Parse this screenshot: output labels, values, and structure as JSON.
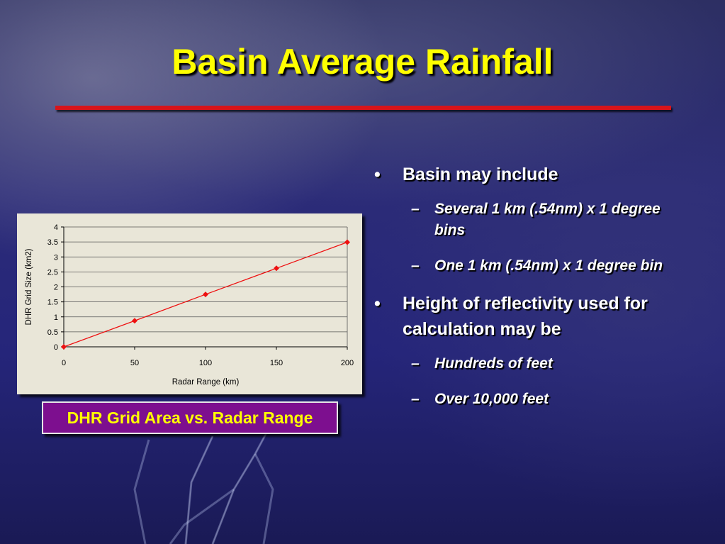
{
  "slide": {
    "title": "Basin Average Rainfall",
    "caption": "DHR Grid Area vs. Radar Range",
    "colors": {
      "title": "#ffff00",
      "rule": "#d8141a",
      "caption_bg": "#7d0f8f",
      "caption_text": "#ffff00",
      "series": "#ee1111"
    }
  },
  "bullets": [
    {
      "mark": "•",
      "text": "Basin may include",
      "subs": [
        {
          "mark": "–",
          "text": "Several 1 km (.54nm) x 1 degree bins"
        },
        {
          "mark": "–",
          "text": "One 1 km (.54nm) x 1 degree bin"
        }
      ]
    },
    {
      "mark": "•",
      "text": "Height of reflectivity used for calculation may be",
      "subs": [
        {
          "mark": "–",
          "text": "Hundreds of feet"
        },
        {
          "mark": "–",
          "text": "Over 10,000 feet"
        }
      ]
    }
  ],
  "chart_data": {
    "type": "line",
    "title": "",
    "xlabel": "Radar Range (km)",
    "ylabel": "DHR Grid Size (km2)",
    "xlim": [
      0,
      200
    ],
    "ylim": [
      0,
      4
    ],
    "xticks": [
      0,
      50,
      100,
      150,
      200
    ],
    "yticks": [
      0,
      0.5,
      1,
      1.5,
      2,
      2.5,
      3,
      3.5,
      4
    ],
    "grid": true,
    "legend": "none",
    "marker": "diamond",
    "series": [
      {
        "x": [
          0,
          50,
          100,
          150,
          200
        ],
        "values": [
          0,
          0.87,
          1.75,
          2.62,
          3.49
        ]
      }
    ]
  }
}
